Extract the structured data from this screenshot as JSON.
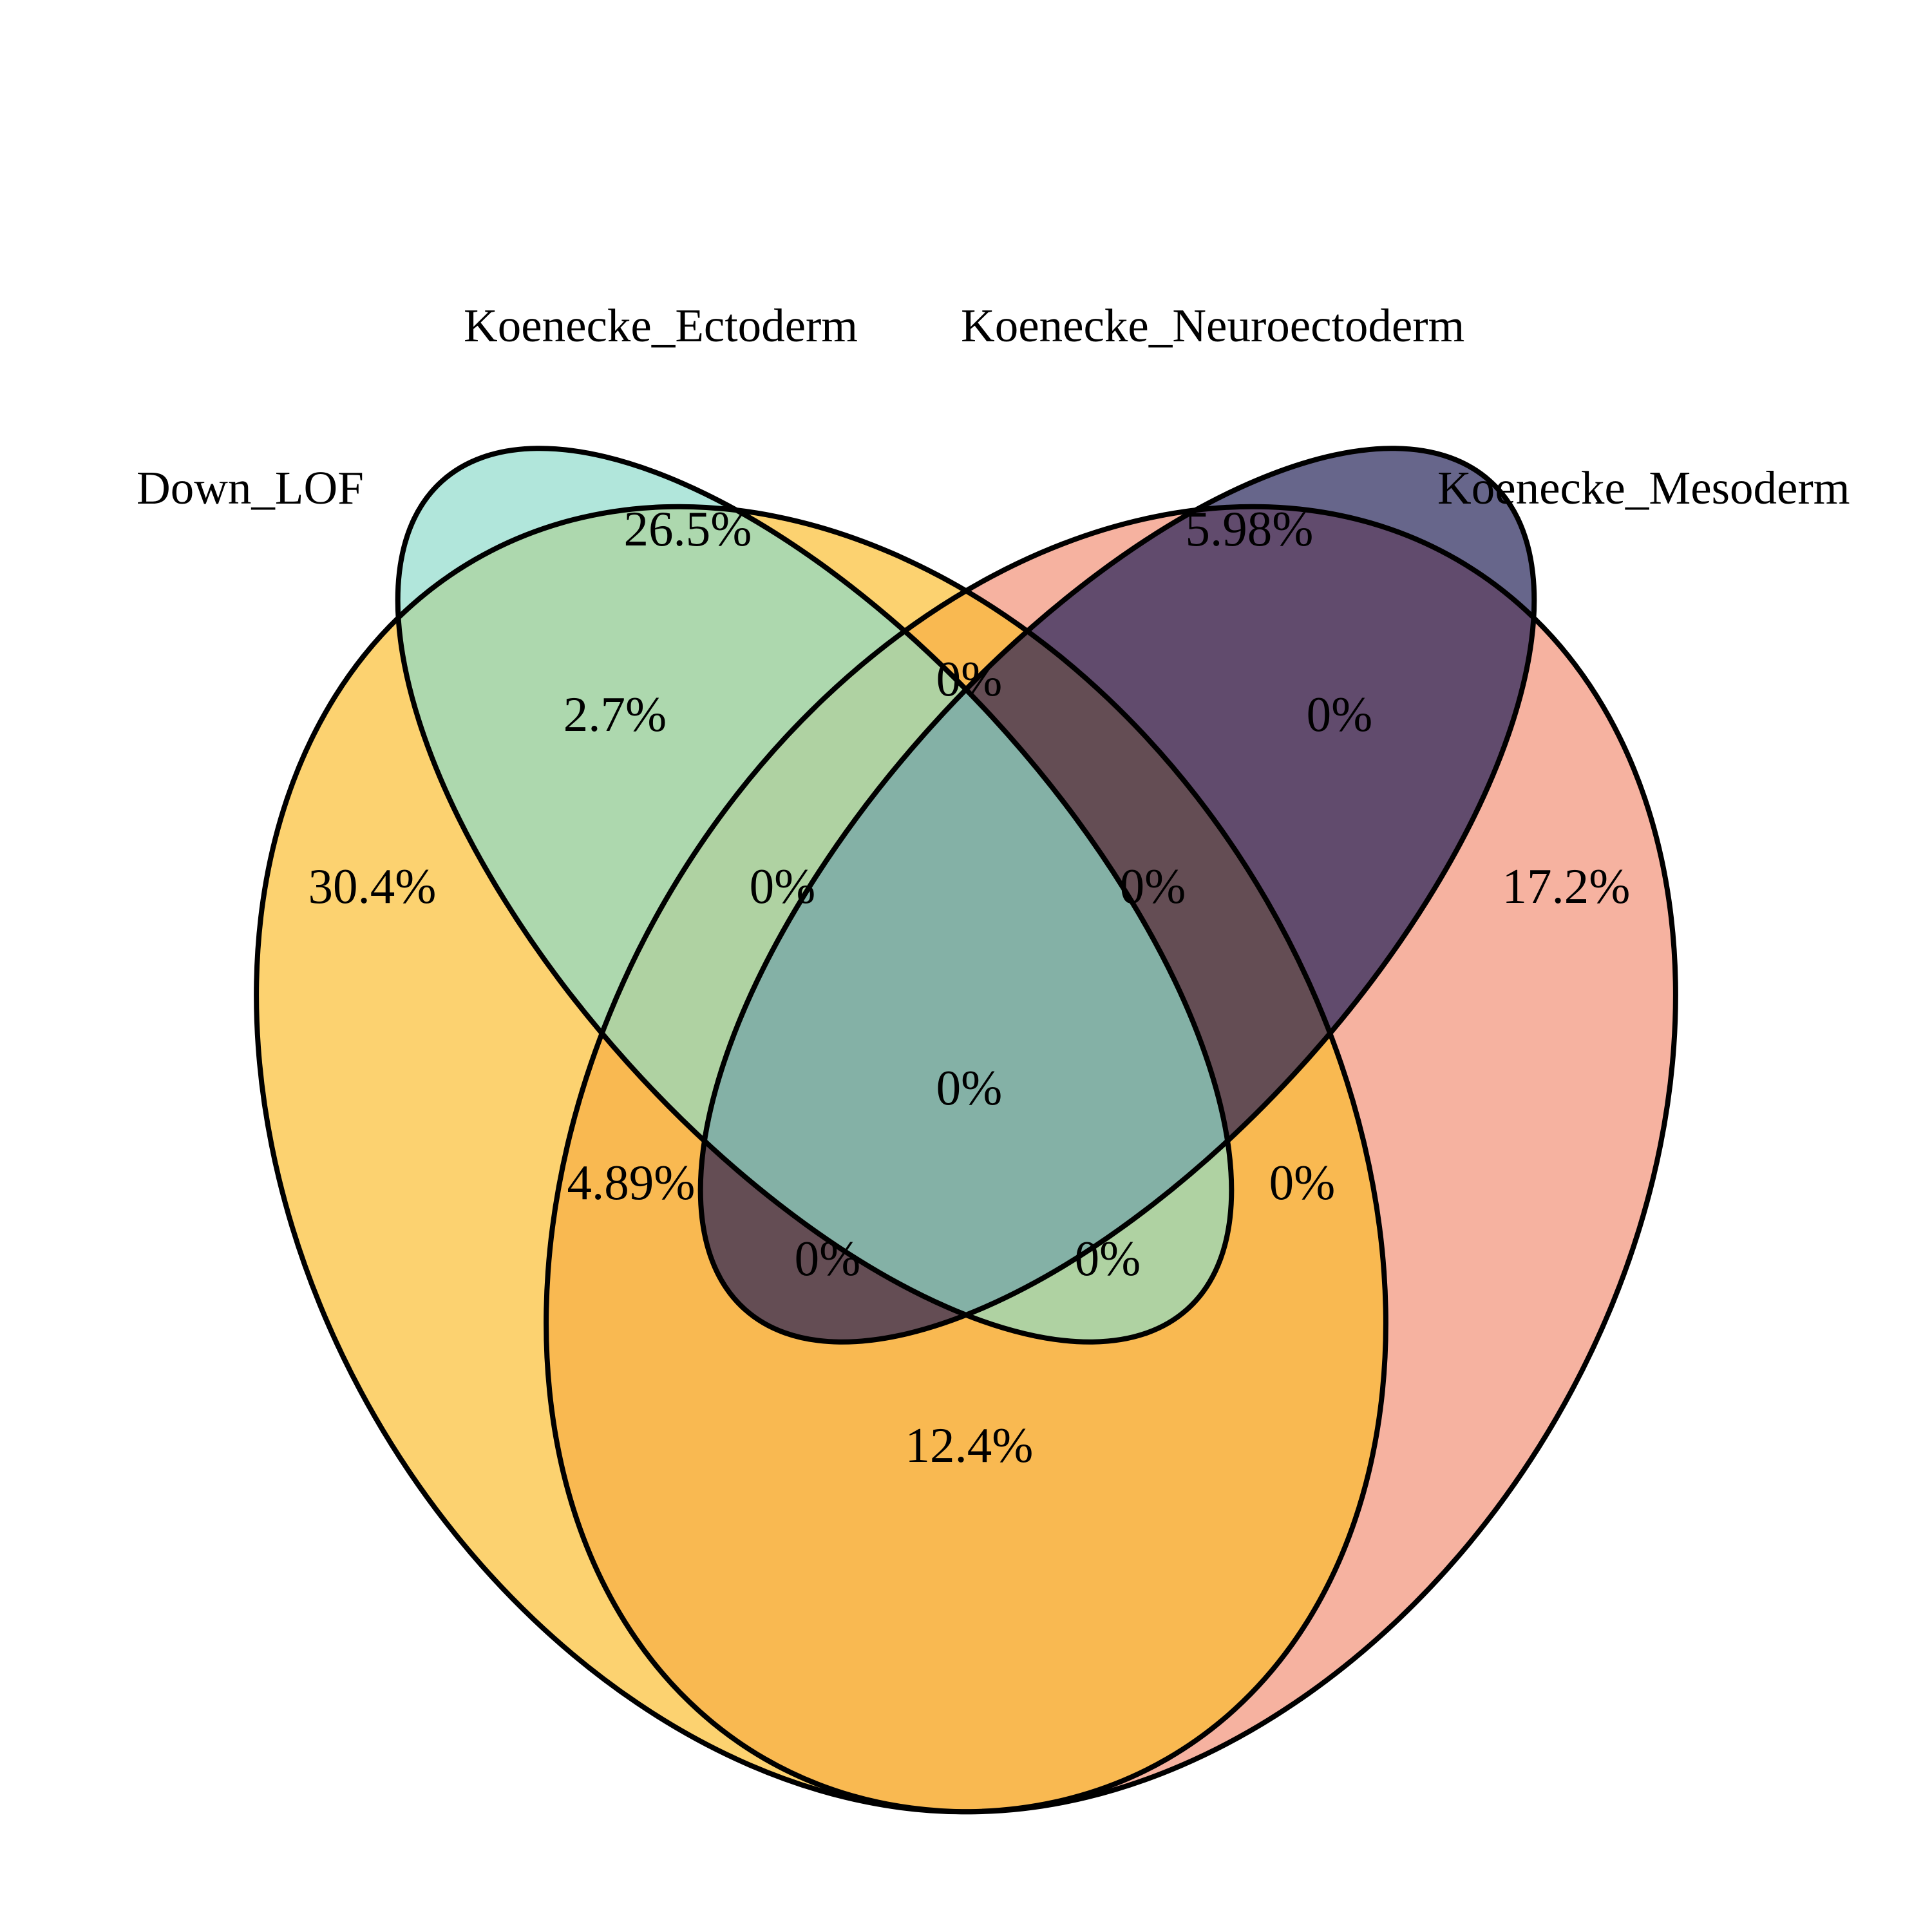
{
  "sets": [
    {
      "key": "A",
      "name": "Down_LOF",
      "color": "#fcd270"
    },
    {
      "key": "B",
      "name": "Koenecke_Ectoderm",
      "color": "#b1e6db"
    },
    {
      "key": "C",
      "name": "Koenecke_Neuroectoderm",
      "color": "#67668b"
    },
    {
      "key": "D",
      "name": "Koenecke_Mesoderm",
      "color": "#f6b2a0"
    }
  ],
  "regions": [
    {
      "sets": [
        "A"
      ],
      "label": "30.4%"
    },
    {
      "sets": [
        "B"
      ],
      "label": "26.5%"
    },
    {
      "sets": [
        "C"
      ],
      "label": "5.98%"
    },
    {
      "sets": [
        "D"
      ],
      "label": "17.2%"
    },
    {
      "sets": [
        "A",
        "B"
      ],
      "label": "2.7%"
    },
    {
      "sets": [
        "B",
        "C"
      ],
      "label": "0%"
    },
    {
      "sets": [
        "C",
        "D"
      ],
      "label": "0%"
    },
    {
      "sets": [
        "A",
        "B",
        "C"
      ],
      "label": "0%"
    },
    {
      "sets": [
        "B",
        "C",
        "D"
      ],
      "label": "0%"
    },
    {
      "sets": [
        "A",
        "B",
        "C",
        "D"
      ],
      "label": "0%"
    },
    {
      "sets": [
        "A",
        "C"
      ],
      "label": "4.89%"
    },
    {
      "sets": [
        "B",
        "D"
      ],
      "label": "0%"
    },
    {
      "sets": [
        "A",
        "C",
        "D"
      ],
      "label": "0%"
    },
    {
      "sets": [
        "A",
        "B",
        "D"
      ],
      "label": "0%"
    },
    {
      "sets": [
        "A",
        "D"
      ],
      "label": "12.4%"
    }
  ],
  "colors": {
    "A_B": "#add8ae",
    "B_C": "#84b5b7",
    "C_D": "#614b6d",
    "A_C": "#665660",
    "B_D": "#aecdbd",
    "A_D": "#f9b951",
    "triple": "#84b1ad",
    "A_C_D": "#644d54",
    "A_B_D": "#afd2a2",
    "all": "#84b1a6"
  }
}
